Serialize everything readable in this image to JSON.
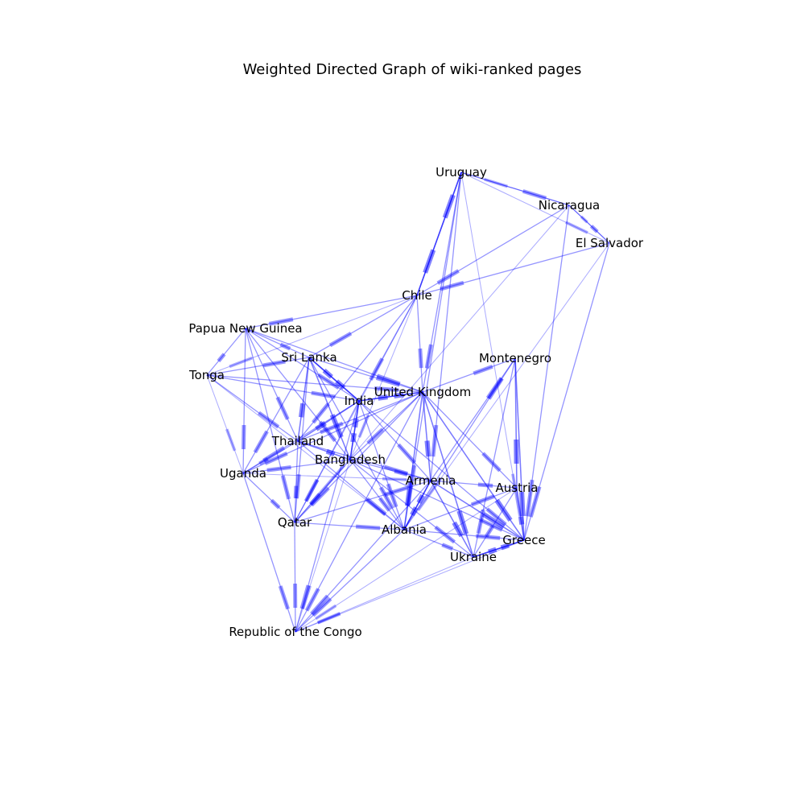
{
  "title": "Weighted Directed Graph of wiki-ranked pages",
  "edge_color": "#0000ff",
  "label_color": "#000000",
  "background": "#ffffff",
  "nodes": [
    {
      "id": "uruguay",
      "label": "Uruguay"
    },
    {
      "id": "nicaragua",
      "label": "Nicaragua"
    },
    {
      "id": "el-salvador",
      "label": "El Salvador"
    },
    {
      "id": "chile",
      "label": "Chile"
    },
    {
      "id": "papua-new-guinea",
      "label": "Papua New Guinea"
    },
    {
      "id": "sri-lanka",
      "label": "Sri Lanka"
    },
    {
      "id": "montenegro",
      "label": "Montenegro"
    },
    {
      "id": "tonga",
      "label": "Tonga"
    },
    {
      "id": "united-kingdom",
      "label": "United Kingdom"
    },
    {
      "id": "india",
      "label": "India"
    },
    {
      "id": "thailand",
      "label": "Thailand"
    },
    {
      "id": "bangladesh",
      "label": "Bangladesh"
    },
    {
      "id": "uganda",
      "label": "Uganda"
    },
    {
      "id": "armenia",
      "label": "Armenia"
    },
    {
      "id": "austria",
      "label": "Austria"
    },
    {
      "id": "qatar",
      "label": "Qatar"
    },
    {
      "id": "albania",
      "label": "Albania"
    },
    {
      "id": "greece",
      "label": "Greece"
    },
    {
      "id": "ukraine",
      "label": "Ukraine"
    },
    {
      "id": "republic-of-the-congo",
      "label": "Republic of the Congo"
    }
  ],
  "edges": [
    {
      "source": "Uruguay",
      "target": "Nicaragua",
      "weight": 2
    },
    {
      "source": "Nicaragua",
      "target": "Uruguay",
      "weight": 1
    },
    {
      "source": "Uruguay",
      "target": "El Salvador",
      "weight": 1
    },
    {
      "source": "Uruguay",
      "target": "Chile",
      "weight": 3
    },
    {
      "source": "Chile",
      "target": "Uruguay",
      "weight": 3
    },
    {
      "source": "Uruguay",
      "target": "Armenia",
      "weight": 2
    },
    {
      "source": "Uruguay",
      "target": "Albania",
      "weight": 2
    },
    {
      "source": "Uruguay",
      "target": "United Kingdom",
      "weight": 2
    },
    {
      "source": "Uruguay",
      "target": "Greece",
      "weight": 1
    },
    {
      "source": "Nicaragua",
      "target": "El Salvador",
      "weight": 2
    },
    {
      "source": "El Salvador",
      "target": "Nicaragua",
      "weight": 1
    },
    {
      "source": "Nicaragua",
      "target": "Chile",
      "weight": 2
    },
    {
      "source": "Nicaragua",
      "target": "Greece",
      "weight": 2
    },
    {
      "source": "Nicaragua",
      "target": "Qatar",
      "weight": 1
    },
    {
      "source": "El Salvador",
      "target": "Chile",
      "weight": 2
    },
    {
      "source": "El Salvador",
      "target": "Greece",
      "weight": 2
    },
    {
      "source": "El Salvador",
      "target": "Albania",
      "weight": 1
    },
    {
      "source": "Chile",
      "target": "Papua New Guinea",
      "weight": 2
    },
    {
      "source": "Chile",
      "target": "Sri Lanka",
      "weight": 2
    },
    {
      "source": "Chile",
      "target": "Tonga",
      "weight": 1
    },
    {
      "source": "Chile",
      "target": "United Kingdom",
      "weight": 2
    },
    {
      "source": "Chile",
      "target": "India",
      "weight": 2
    },
    {
      "source": "Chile",
      "target": "Thailand",
      "weight": 2
    },
    {
      "source": "Chile",
      "target": "Qatar",
      "weight": 1
    },
    {
      "source": "Chile",
      "target": "Bangladesh",
      "weight": 1
    },
    {
      "source": "Papua New Guinea",
      "target": "Tonga",
      "weight": 2
    },
    {
      "source": "Papua New Guinea",
      "target": "Sri Lanka",
      "weight": 2
    },
    {
      "source": "Papua New Guinea",
      "target": "India",
      "weight": 2
    },
    {
      "source": "Papua New Guinea",
      "target": "United Kingdom",
      "weight": 2
    },
    {
      "source": "Papua New Guinea",
      "target": "Thailand",
      "weight": 2
    },
    {
      "source": "Papua New Guinea",
      "target": "Bangladesh",
      "weight": 2
    },
    {
      "source": "Papua New Guinea",
      "target": "Uganda",
      "weight": 2
    },
    {
      "source": "Papua New Guinea",
      "target": "Qatar",
      "weight": 2
    },
    {
      "source": "Tonga",
      "target": "Sri Lanka",
      "weight": 2
    },
    {
      "source": "Tonga",
      "target": "India",
      "weight": 2
    },
    {
      "source": "Tonga",
      "target": "United Kingdom",
      "weight": 2
    },
    {
      "source": "Tonga",
      "target": "Thailand",
      "weight": 2
    },
    {
      "source": "Tonga",
      "target": "Uganda",
      "weight": 1
    },
    {
      "source": "Tonga",
      "target": "Albania",
      "weight": 1
    },
    {
      "source": "Sri Lanka",
      "target": "India",
      "weight": 3
    },
    {
      "source": "India",
      "target": "Sri Lanka",
      "weight": 3
    },
    {
      "source": "Sri Lanka",
      "target": "United Kingdom",
      "weight": 2
    },
    {
      "source": "Sri Lanka",
      "target": "Thailand",
      "weight": 3
    },
    {
      "source": "Sri Lanka",
      "target": "Bangladesh",
      "weight": 3
    },
    {
      "source": "Sri Lanka",
      "target": "Qatar",
      "weight": 2
    },
    {
      "source": "Sri Lanka",
      "target": "Uganda",
      "weight": 2
    },
    {
      "source": "Sri Lanka",
      "target": "Albania",
      "weight": 2
    },
    {
      "source": "United Kingdom",
      "target": "India",
      "weight": 3
    },
    {
      "source": "India",
      "target": "United Kingdom",
      "weight": 3
    },
    {
      "source": "United Kingdom",
      "target": "Armenia",
      "weight": 3
    },
    {
      "source": "United Kingdom",
      "target": "Albania",
      "weight": 3
    },
    {
      "source": "United Kingdom",
      "target": "Austria",
      "weight": 2
    },
    {
      "source": "United Kingdom",
      "target": "Greece",
      "weight": 3
    },
    {
      "source": "United Kingdom",
      "target": "Ukraine",
      "weight": 3
    },
    {
      "source": "United Kingdom",
      "target": "Thailand",
      "weight": 2
    },
    {
      "source": "United Kingdom",
      "target": "Bangladesh",
      "weight": 2
    },
    {
      "source": "United Kingdom",
      "target": "Uganda",
      "weight": 2
    },
    {
      "source": "United Kingdom",
      "target": "Qatar",
      "weight": 2
    },
    {
      "source": "United Kingdom",
      "target": "Montenegro",
      "weight": 2
    },
    {
      "source": "United Kingdom",
      "target": "Republic of the Congo",
      "weight": 2
    },
    {
      "source": "India",
      "target": "Thailand",
      "weight": 3
    },
    {
      "source": "India",
      "target": "Bangladesh",
      "weight": 3
    },
    {
      "source": "Bangladesh",
      "target": "India",
      "weight": 3
    },
    {
      "source": "India",
      "target": "Uganda",
      "weight": 2
    },
    {
      "source": "India",
      "target": "Qatar",
      "weight": 2
    },
    {
      "source": "India",
      "target": "Armenia",
      "weight": 2
    },
    {
      "source": "India",
      "target": "Albania",
      "weight": 2
    },
    {
      "source": "India",
      "target": "Greece",
      "weight": 2
    },
    {
      "source": "India",
      "target": "Republic of the Congo",
      "weight": 2
    },
    {
      "source": "Thailand",
      "target": "Bangladesh",
      "weight": 3
    },
    {
      "source": "Thailand",
      "target": "Uganda",
      "weight": 2
    },
    {
      "source": "Thailand",
      "target": "Qatar",
      "weight": 2
    },
    {
      "source": "Thailand",
      "target": "Albania",
      "weight": 2
    },
    {
      "source": "Thailand",
      "target": "Armenia",
      "weight": 2
    },
    {
      "source": "Bangladesh",
      "target": "Uganda",
      "weight": 2
    },
    {
      "source": "Bangladesh",
      "target": "Qatar",
      "weight": 2
    },
    {
      "source": "Bangladesh",
      "target": "Armenia",
      "weight": 2
    },
    {
      "source": "Bangladesh",
      "target": "Albania",
      "weight": 2
    },
    {
      "source": "Bangladesh",
      "target": "Ukraine",
      "weight": 2
    },
    {
      "source": "Bangladesh",
      "target": "Greece",
      "weight": 2
    },
    {
      "source": "Bangladesh",
      "target": "Republic of the Congo",
      "weight": 1
    },
    {
      "source": "Uganda",
      "target": "Qatar",
      "weight": 2
    },
    {
      "source": "Uganda",
      "target": "Armenia",
      "weight": 1
    },
    {
      "source": "Uganda",
      "target": "Republic of the Congo",
      "weight": 2
    },
    {
      "source": "Qatar",
      "target": "Armenia",
      "weight": 2
    },
    {
      "source": "Qatar",
      "target": "Albania",
      "weight": 2
    },
    {
      "source": "Qatar",
      "target": "Republic of the Congo",
      "weight": 2
    },
    {
      "source": "Armenia",
      "target": "Albania",
      "weight": 3
    },
    {
      "source": "Albania",
      "target": "Armenia",
      "weight": 3
    },
    {
      "source": "Armenia",
      "target": "Austria",
      "weight": 2
    },
    {
      "source": "Armenia",
      "target": "Greece",
      "weight": 3
    },
    {
      "source": "Armenia",
      "target": "Ukraine",
      "weight": 3
    },
    {
      "source": "Armenia",
      "target": "Montenegro",
      "weight": 2
    },
    {
      "source": "Armenia",
      "target": "Republic of the Congo",
      "weight": 2
    },
    {
      "source": "Albania",
      "target": "Austria",
      "weight": 2
    },
    {
      "source": "Albania",
      "target": "Greece",
      "weight": 2
    },
    {
      "source": "Albania",
      "target": "Ukraine",
      "weight": 2
    },
    {
      "source": "Albania",
      "target": "Montenegro",
      "weight": 2
    },
    {
      "source": "Albania",
      "target": "Republic of the Congo",
      "weight": 2
    },
    {
      "source": "Montenegro",
      "target": "Austria",
      "weight": 3
    },
    {
      "source": "Montenegro",
      "target": "Greece",
      "weight": 3
    },
    {
      "source": "Montenegro",
      "target": "Ukraine",
      "weight": 2
    },
    {
      "source": "Austria",
      "target": "Greece",
      "weight": 3
    },
    {
      "source": "Austria",
      "target": "Ukraine",
      "weight": 2
    },
    {
      "source": "Greece",
      "target": "Ukraine",
      "weight": 3
    },
    {
      "source": "Ukraine",
      "target": "Greece",
      "weight": 3
    },
    {
      "source": "Greece",
      "target": "Republic of the Congo",
      "weight": 1
    },
    {
      "source": "Ukraine",
      "target": "Republic of the Congo",
      "weight": 1
    },
    {
      "source": "Austria",
      "target": "Republic of the Congo",
      "weight": 1
    }
  ]
}
